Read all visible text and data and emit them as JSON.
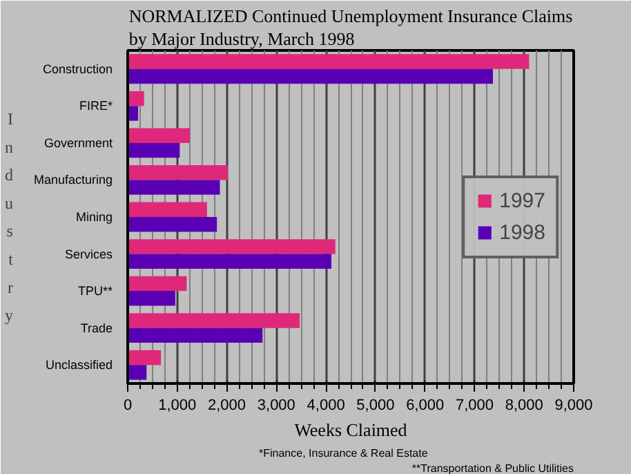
{
  "chart_data": {
    "type": "bar",
    "orientation": "horizontal",
    "title": "NORMALIZED Continued Unemployment Insurance Claims\nby Major Industry, March 1998",
    "xlabel": "Weeks Claimed",
    "ylabel": "Industry",
    "categories": [
      "Construction",
      "FIRE*",
      "Government",
      "Manufacturing",
      "Mining",
      "Services",
      "TPU**",
      "Trade",
      "Unclassified"
    ],
    "series": [
      {
        "name": "1997",
        "color": "#e0287a",
        "values": [
          8100,
          330,
          1250,
          2020,
          1600,
          4190,
          1190,
          3470,
          670
        ]
      },
      {
        "name": "1998",
        "color": "#5a00b4",
        "values": [
          7370,
          210,
          1050,
          1860,
          1800,
          4110,
          960,
          2720,
          380
        ]
      }
    ],
    "xlim": [
      0,
      9000
    ],
    "xticks": [
      0,
      {
        "value": 1000,
        "label": "1,000"
      },
      {
        "value": 2000,
        "label": "2,000"
      },
      {
        "value": 3000,
        "label": "3,000"
      },
      {
        "value": 4000,
        "label": "4,000"
      },
      {
        "value": 5000,
        "label": "5,000"
      },
      {
        "value": 6000,
        "label": "6,000"
      },
      {
        "value": 7000,
        "label": "7,000"
      },
      {
        "value": 8000,
        "label": "8,000"
      },
      {
        "value": 9000,
        "label": "9,000"
      }
    ],
    "grid": "x",
    "legend": "right",
    "annotations": [
      "*Finance, Insurance & Real Estate",
      "**Transportation & Public Utilities"
    ]
  }
}
